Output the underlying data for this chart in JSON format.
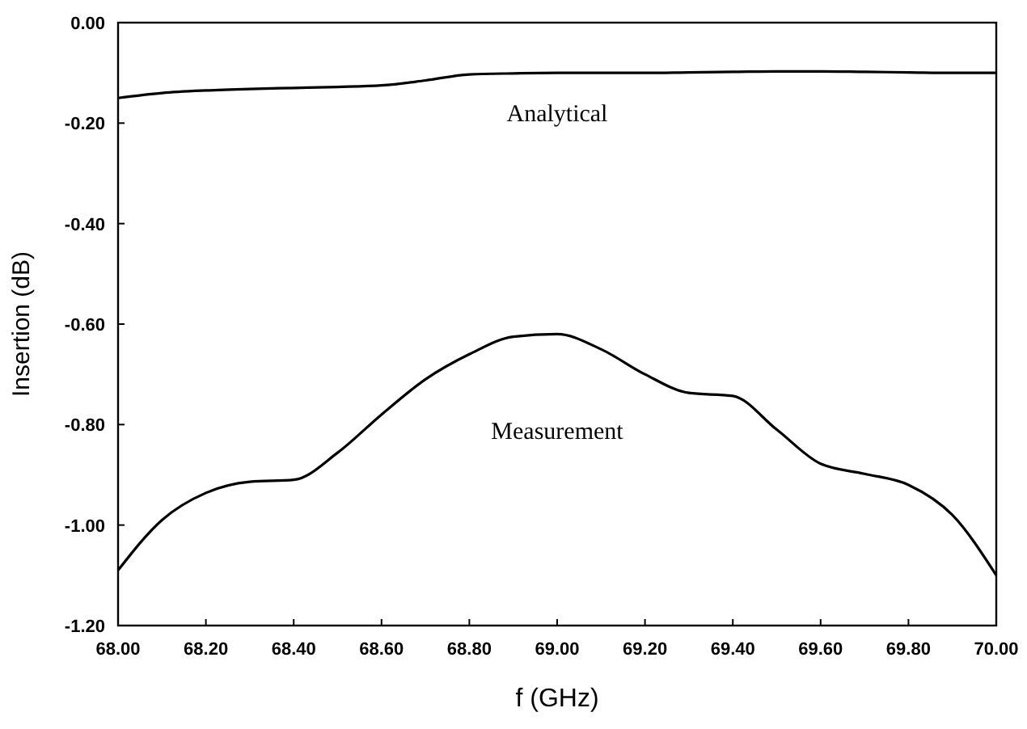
{
  "chart_data": {
    "type": "line",
    "xlabel": "f (GHz)",
    "ylabel": "Insertion (dB)",
    "xlim": [
      68,
      70
    ],
    "ylim": [
      -1.2,
      0
    ],
    "xticks": [
      {
        "value": 68,
        "label": "68.00"
      },
      {
        "value": 68.2,
        "label": "68.20"
      },
      {
        "value": 68.4,
        "label": "68.40"
      },
      {
        "value": 68.6,
        "label": "68.60"
      },
      {
        "value": 68.8,
        "label": "68.80"
      },
      {
        "value": 69,
        "label": "69.00"
      },
      {
        "value": 69.2,
        "label": "69.20"
      },
      {
        "value": 69.4,
        "label": "69.40"
      },
      {
        "value": 69.6,
        "label": "69.60"
      },
      {
        "value": 69.8,
        "label": "69.80"
      },
      {
        "value": 70,
        "label": "70.00"
      }
    ],
    "yticks": [
      {
        "value": -1.2,
        "label": "-1.20"
      },
      {
        "value": -1,
        "label": "-1.00"
      },
      {
        "value": -0.8,
        "label": "-0.80"
      },
      {
        "value": -0.6,
        "label": "-0.60"
      },
      {
        "value": -0.4,
        "label": "-0.40"
      },
      {
        "value": -0.2,
        "label": "-0.20"
      },
      {
        "value": 0,
        "label": "0.00"
      }
    ],
    "x": [
      68,
      68.1,
      68.2,
      68.3,
      68.4,
      68.5,
      68.6,
      68.7,
      68.8,
      68.9,
      69,
      69.1,
      69.2,
      69.3,
      69.4,
      69.5,
      69.6,
      69.7,
      69.8,
      69.9,
      70
    ],
    "series": [
      {
        "name": "Analytical",
        "color": "#000000",
        "values": [
          -0.15,
          -0.14,
          -0.135,
          -0.132,
          -0.13,
          -0.128,
          -0.125,
          -0.115,
          -0.103,
          -0.101,
          -0.1,
          -0.1,
          -0.1,
          -0.099,
          -0.098,
          -0.097,
          -0.097,
          -0.098,
          -0.099,
          -0.1,
          -0.1
        ]
      },
      {
        "name": "Measurement",
        "color": "#000000",
        "values": [
          -1.09,
          -0.99,
          -0.936,
          -0.914,
          -0.91,
          -0.856,
          -0.78,
          -0.71,
          -0.66,
          -0.625,
          -0.62,
          -0.65,
          -0.7,
          -0.737,
          -0.743,
          -0.81,
          -0.878,
          -0.898,
          -0.92,
          -0.98,
          -1.1
        ]
      }
    ],
    "grid": false,
    "legend": false,
    "marker": "none",
    "line_style": "solid"
  }
}
